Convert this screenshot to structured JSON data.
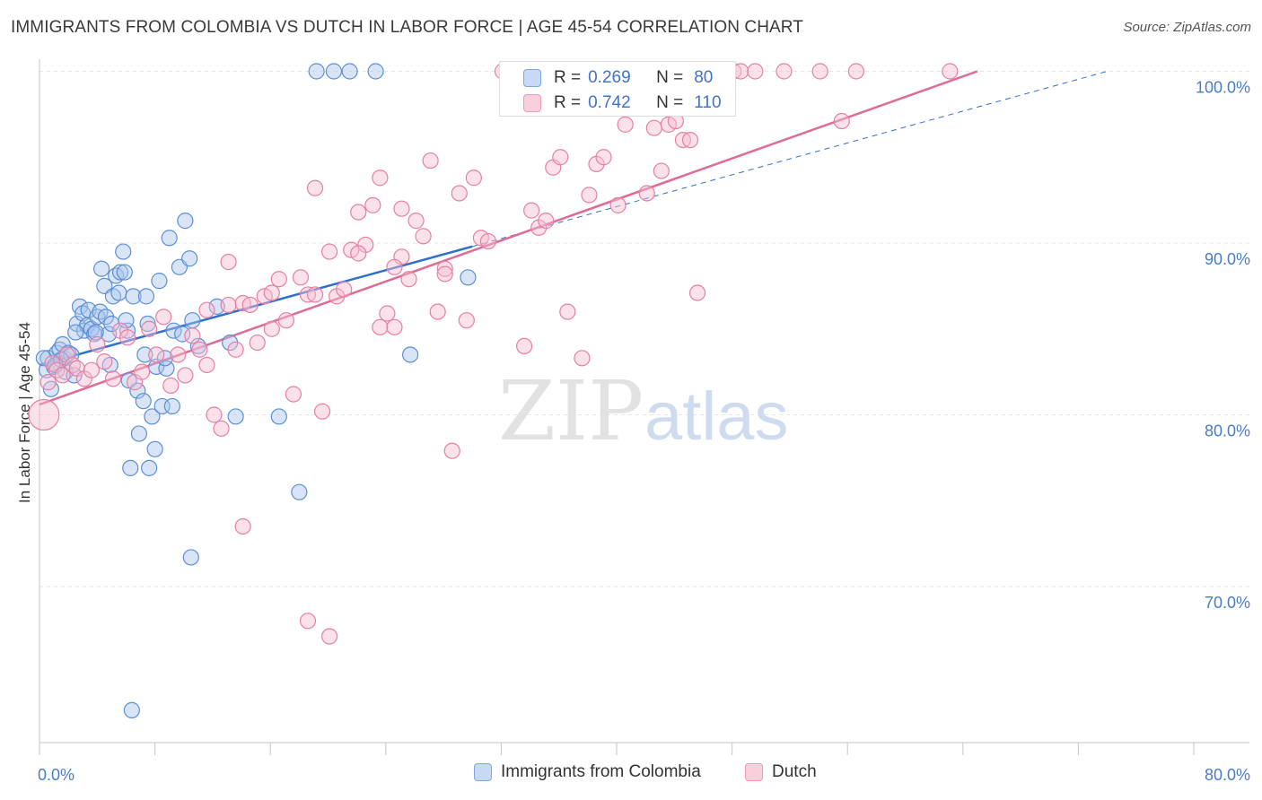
{
  "title": "IMMIGRANTS FROM COLOMBIA VS DUTCH IN LABOR FORCE | AGE 45-54 CORRELATION CHART",
  "source": "Source: ZipAtlas.com",
  "watermark": {
    "zip": "ZIP",
    "atlas": "atlas"
  },
  "colors": {
    "blue": "#5b8fd6",
    "blue_fill": "#aac6ee",
    "blue_line": "#2f6fd0",
    "pink": "#e77fa3",
    "pink_fill": "#f6bed0",
    "pink_line": "#e06a96",
    "axis_text": "#4a7cc8"
  },
  "stats": {
    "rows": [
      {
        "r_label": "R =",
        "r_value": "0.269",
        "n_label": "N =",
        "n_value": "80"
      },
      {
        "r_label": "R =",
        "r_value": "0.742",
        "n_label": "N =",
        "n_value": "110"
      }
    ]
  },
  "legend": {
    "items": [
      {
        "label": "Immigrants from Colombia"
      },
      {
        "label": "Dutch"
      }
    ]
  },
  "chart_data": {
    "type": "scatter",
    "title": "IMMIGRANTS FROM COLOMBIA VS DUTCH IN LABOR FORCE | AGE 45-54 CORRELATION CHART",
    "xlabel": "",
    "ylabel": "In Labor Force | Age 45-54",
    "xlim": [
      0,
      80
    ],
    "ylim": [
      60,
      102
    ],
    "x_tick_labels": [
      "0.0%",
      "80.0%"
    ],
    "y_ticks": [
      70,
      80,
      90,
      100
    ],
    "y_tick_labels": [
      "70.0%",
      "80.0%",
      "90.0%",
      "100.0%"
    ],
    "grid": true,
    "legend_position": "bottom",
    "series": [
      {
        "name": "Immigrants from Colombia",
        "color": "#5b8fd6",
        "points": [
          [
            0.5,
            82.6
          ],
          [
            0.6,
            83.3
          ],
          [
            0.8,
            81.5
          ],
          [
            1.0,
            82.8
          ],
          [
            1.2,
            83.6
          ],
          [
            1.4,
            83.8
          ],
          [
            1.6,
            84.1
          ],
          [
            1.7,
            83.3
          ],
          [
            1.8,
            82.5
          ],
          [
            2.0,
            83.6
          ],
          [
            2.2,
            83.5
          ],
          [
            2.4,
            82.3
          ],
          [
            2.6,
            85.3
          ],
          [
            2.8,
            86.3
          ],
          [
            3.0,
            85.9
          ],
          [
            3.1,
            84.9
          ],
          [
            3.3,
            85.2
          ],
          [
            3.4,
            86.1
          ],
          [
            3.6,
            85.0
          ],
          [
            3.8,
            84.7
          ],
          [
            4.0,
            85.7
          ],
          [
            4.2,
            86.0
          ],
          [
            4.3,
            88.5
          ],
          [
            4.5,
            87.5
          ],
          [
            4.6,
            85.7
          ],
          [
            4.8,
            84.7
          ],
          [
            4.9,
            82.9
          ],
          [
            5.1,
            86.9
          ],
          [
            5.3,
            88.1
          ],
          [
            5.5,
            87.1
          ],
          [
            5.6,
            88.3
          ],
          [
            5.8,
            89.5
          ],
          [
            5.9,
            88.3
          ],
          [
            6.1,
            84.9
          ],
          [
            6.2,
            82.0
          ],
          [
            6.5,
            86.9
          ],
          [
            6.8,
            81.4
          ],
          [
            6.9,
            78.9
          ],
          [
            7.2,
            80.8
          ],
          [
            7.4,
            86.9
          ],
          [
            7.5,
            85.3
          ],
          [
            7.8,
            79.9
          ],
          [
            8.1,
            82.8
          ],
          [
            8.3,
            87.8
          ],
          [
            8.5,
            80.5
          ],
          [
            8.8,
            82.7
          ],
          [
            9.0,
            90.3
          ],
          [
            9.2,
            80.5
          ],
          [
            9.3,
            84.9
          ],
          [
            9.7,
            88.6
          ],
          [
            9.9,
            84.7
          ],
          [
            10.1,
            91.3
          ],
          [
            10.4,
            89.1
          ],
          [
            10.6,
            85.5
          ],
          [
            11.0,
            84.0
          ],
          [
            12.3,
            86.3
          ],
          [
            13.2,
            84.2
          ],
          [
            13.6,
            79.9
          ],
          [
            16.6,
            79.9
          ],
          [
            18.0,
            75.5
          ],
          [
            19.2,
            100.0
          ],
          [
            20.4,
            100.0
          ],
          [
            21.5,
            100.0
          ],
          [
            23.3,
            100.0
          ],
          [
            25.7,
            83.5
          ],
          [
            29.7,
            88.0
          ],
          [
            0.3,
            83.3
          ],
          [
            1.1,
            82.9
          ],
          [
            1.5,
            83.2
          ],
          [
            2.5,
            84.8
          ],
          [
            3.9,
            84.8
          ],
          [
            5.0,
            85.3
          ],
          [
            6.0,
            85.5
          ],
          [
            6.3,
            76.9
          ],
          [
            7.3,
            83.5
          ],
          [
            7.6,
            76.9
          ],
          [
            8.0,
            78.0
          ],
          [
            8.7,
            83.3
          ],
          [
            10.5,
            71.7
          ],
          [
            6.4,
            62.8
          ]
        ]
      },
      {
        "name": "Dutch",
        "color": "#e77fa3",
        "points": [
          [
            0.3,
            80.0
          ],
          [
            0.6,
            81.9
          ],
          [
            0.9,
            83.0
          ],
          [
            1.2,
            82.6
          ],
          [
            1.6,
            82.3
          ],
          [
            1.9,
            83.5
          ],
          [
            2.3,
            82.9
          ],
          [
            2.6,
            82.7
          ],
          [
            3.1,
            82.1
          ],
          [
            3.6,
            82.6
          ],
          [
            4.0,
            84.1
          ],
          [
            4.5,
            83.1
          ],
          [
            5.1,
            82.1
          ],
          [
            5.6,
            84.9
          ],
          [
            6.1,
            84.5
          ],
          [
            6.6,
            81.9
          ],
          [
            7.1,
            82.5
          ],
          [
            7.6,
            85.0
          ],
          [
            8.1,
            83.5
          ],
          [
            8.6,
            85.7
          ],
          [
            9.1,
            81.7
          ],
          [
            9.6,
            83.5
          ],
          [
            10.1,
            82.3
          ],
          [
            10.6,
            84.6
          ],
          [
            11.1,
            83.8
          ],
          [
            11.6,
            82.9
          ],
          [
            12.1,
            80.0
          ],
          [
            12.6,
            79.2
          ],
          [
            13.1,
            86.4
          ],
          [
            13.6,
            83.8
          ],
          [
            14.1,
            86.5
          ],
          [
            14.6,
            86.4
          ],
          [
            15.1,
            84.2
          ],
          [
            15.6,
            86.9
          ],
          [
            16.1,
            85.0
          ],
          [
            16.6,
            87.9
          ],
          [
            17.1,
            85.5
          ],
          [
            17.6,
            81.2
          ],
          [
            18.1,
            88.0
          ],
          [
            18.6,
            87.0
          ],
          [
            19.1,
            87.0
          ],
          [
            19.6,
            80.2
          ],
          [
            20.1,
            89.5
          ],
          [
            20.6,
            86.9
          ],
          [
            21.1,
            87.3
          ],
          [
            21.6,
            89.6
          ],
          [
            22.1,
            91.8
          ],
          [
            22.6,
            89.9
          ],
          [
            23.1,
            92.2
          ],
          [
            23.6,
            85.1
          ],
          [
            24.1,
            85.9
          ],
          [
            24.6,
            85.1
          ],
          [
            25.1,
            89.2
          ],
          [
            25.6,
            87.9
          ],
          [
            26.1,
            91.3
          ],
          [
            26.6,
            90.4
          ],
          [
            27.1,
            94.8
          ],
          [
            27.6,
            86.0
          ],
          [
            28.1,
            88.5
          ],
          [
            28.6,
            77.9
          ],
          [
            29.1,
            92.9
          ],
          [
            29.6,
            85.5
          ],
          [
            30.1,
            93.8
          ],
          [
            30.6,
            90.3
          ],
          [
            32.1,
            100.0
          ],
          [
            33.6,
            84.0
          ],
          [
            34.1,
            91.9
          ],
          [
            34.6,
            90.9
          ],
          [
            35.1,
            91.3
          ],
          [
            35.6,
            94.4
          ],
          [
            36.1,
            95.0
          ],
          [
            36.6,
            86.0
          ],
          [
            37.6,
            83.3
          ],
          [
            38.1,
            92.8
          ],
          [
            38.6,
            94.6
          ],
          [
            39.1,
            95.0
          ],
          [
            40.1,
            92.2
          ],
          [
            40.6,
            96.9
          ],
          [
            41.1,
            99.5
          ],
          [
            42.1,
            92.9
          ],
          [
            42.6,
            96.7
          ],
          [
            43.1,
            94.2
          ],
          [
            43.6,
            96.9
          ],
          [
            44.1,
            97.1
          ],
          [
            44.6,
            96.0
          ],
          [
            45.1,
            96.0
          ],
          [
            45.6,
            87.1
          ],
          [
            46.1,
            100.0
          ],
          [
            47.6,
            100.0
          ],
          [
            48.1,
            100.0
          ],
          [
            48.6,
            100.0
          ],
          [
            49.6,
            100.0
          ],
          [
            51.6,
            100.0
          ],
          [
            54.1,
            100.0
          ],
          [
            55.6,
            97.1
          ],
          [
            56.6,
            100.0
          ],
          [
            63.1,
            100.0
          ],
          [
            14.1,
            73.5
          ],
          [
            18.6,
            68.0
          ],
          [
            20.1,
            67.1
          ],
          [
            19.1,
            93.2
          ],
          [
            23.6,
            93.8
          ],
          [
            25.1,
            92.0
          ],
          [
            28.1,
            88.2
          ],
          [
            31.1,
            90.1
          ],
          [
            22.1,
            89.4
          ],
          [
            24.6,
            88.6
          ],
          [
            16.1,
            87.1
          ],
          [
            13.1,
            88.9
          ],
          [
            11.6,
            86.1
          ]
        ]
      }
    ],
    "trendlines": [
      {
        "series": "Immigrants from Colombia",
        "style": "solid",
        "x": [
          0,
          30
        ],
        "y": [
          82.9,
          89.8
        ]
      },
      {
        "series": "Immigrants from Colombia",
        "style": "dashed",
        "x": [
          30,
          74
        ],
        "y": [
          89.8,
          100.0
        ]
      },
      {
        "series": "Dutch",
        "style": "solid",
        "x": [
          0,
          65
        ],
        "y": [
          80.6,
          100.0
        ]
      }
    ]
  }
}
